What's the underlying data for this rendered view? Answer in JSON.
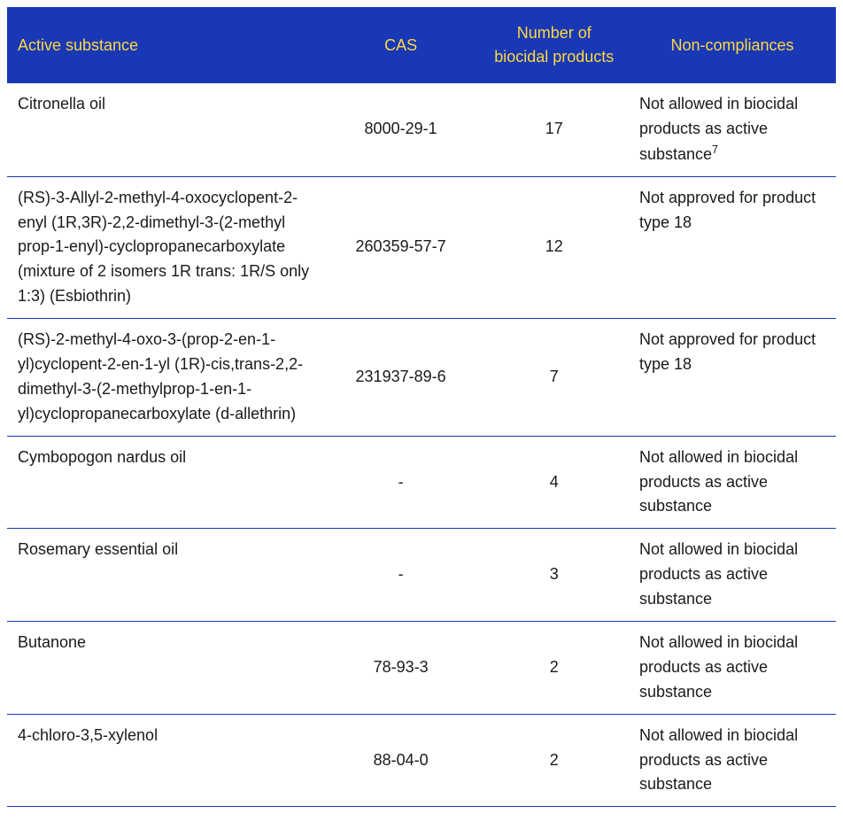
{
  "table": {
    "header_bg": "#1838b5",
    "header_text_color": "#ffd740",
    "border_color": "#1838b5",
    "body_text_color": "#1a1a1a",
    "font_family": "Verdana",
    "header_fontsize": 18,
    "body_fontsize": 18,
    "columns": [
      {
        "key": "substance",
        "label": "Active substance",
        "width_pct": 38,
        "align": "left"
      },
      {
        "key": "cas",
        "label": "CAS",
        "width_pct": 19,
        "align": "center"
      },
      {
        "key": "num",
        "label": "Number of biocidal products",
        "width_pct": 18,
        "align": "center"
      },
      {
        "key": "nc",
        "label": "Non-compliances",
        "width_pct": 25,
        "align": "left"
      }
    ],
    "rows": [
      {
        "substance": "Citronella oil",
        "cas": "8000-29-1",
        "num": "17",
        "nc": "Not allowed in biocidal products as active substance",
        "nc_sup": "7"
      },
      {
        "substance": "(RS)-3-Allyl-2-methyl-4-oxocyclopent-2- enyl (1R,3R)-2,2-dimethyl-3-(2-methyl prop-1-enyl)-cyclopropanecarboxylate (mixture of 2 isomers 1R trans: 1R/S only 1:3) (Esbiothrin)",
        "cas": "260359-57-7",
        "num": "12",
        "nc": "Not approved for product type 18"
      },
      {
        "substance": "(RS)-2-methyl-4-oxo-3-(prop-2-en-1-yl)cyclopent-2-en-1-yl (1R)-cis,trans-2,2-dimethyl-3-(2-methylprop-1-en-1-yl)cyclopropanecarboxylate (d-allethrin)",
        "cas": "231937-89-6",
        "num": "7",
        "nc": "Not approved for product type 18"
      },
      {
        "substance": "Cymbopogon nardus oil",
        "cas": "-",
        "num": "4",
        "nc": "Not allowed in biocidal products as active substance"
      },
      {
        "substance": "Rosemary essential oil",
        "cas": "-",
        "num": "3",
        "nc": "Not allowed in biocidal products as active substance"
      },
      {
        "substance": "Butanone",
        "cas": "78-93-3",
        "num": "2",
        "nc": "Not allowed in biocidal products as active substance"
      },
      {
        "substance": "4-chloro-3,5-xylenol",
        "cas": "88-04-0",
        "num": "2",
        "nc": "Not allowed in biocidal products as active substance"
      }
    ]
  }
}
